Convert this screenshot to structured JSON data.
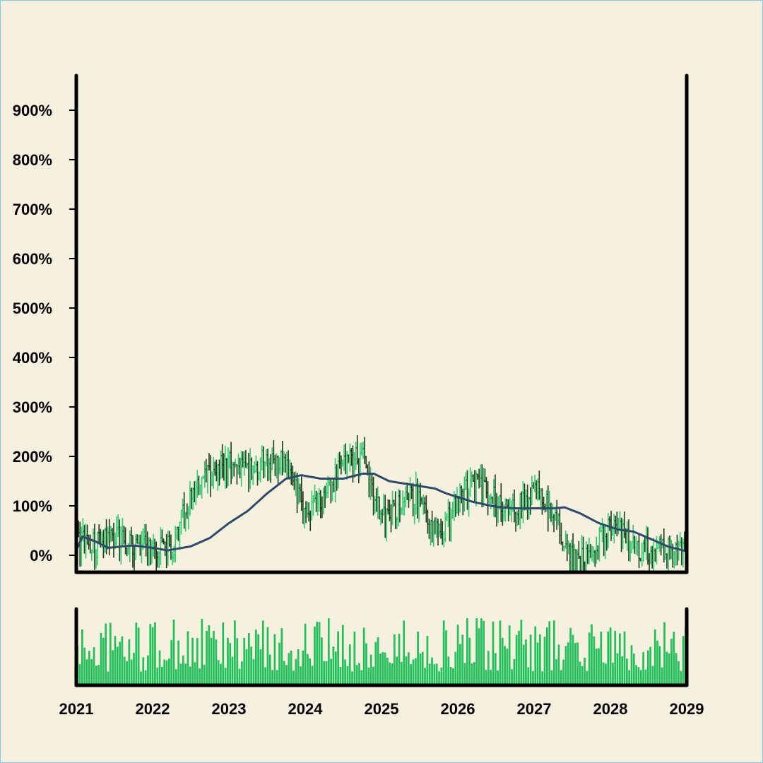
{
  "chart_data": {
    "type": "ohlc",
    "title": "",
    "xlabel": "",
    "ylabel": "",
    "x_ticks": [
      "2021",
      "2022",
      "2023",
      "2024",
      "2025",
      "2026",
      "2027",
      "2028",
      "2029"
    ],
    "y_ticks": [
      "0%",
      "100%",
      "200%",
      "300%",
      "400%",
      "500%",
      "600%",
      "700%",
      "800%",
      "900%"
    ],
    "x_range": [
      2021.0,
      2029.0
    ],
    "ylim": [
      -30,
      960
    ],
    "colors": {
      "up": "#2ecc71",
      "down": "#1a3d1a",
      "moving_average": "#2c4a6b",
      "volume": "#22c05a",
      "axis": "#000000",
      "background": "#f6f0df"
    },
    "series": [
      {
        "type": "ohlc",
        "approx_close_path": [
          [
            2021.0,
            30
          ],
          [
            2021.25,
            20
          ],
          [
            2021.5,
            40
          ],
          [
            2021.75,
            20
          ],
          [
            2022.0,
            10
          ],
          [
            2022.25,
            15
          ],
          [
            2022.5,
            120
          ],
          [
            2022.75,
            160
          ],
          [
            2023.0,
            185
          ],
          [
            2023.25,
            170
          ],
          [
            2023.5,
            190
          ],
          [
            2023.75,
            180
          ],
          [
            2024.0,
            80
          ],
          [
            2024.25,
            110
          ],
          [
            2024.5,
            190
          ],
          [
            2024.75,
            200
          ],
          [
            2025.0,
            70
          ],
          [
            2025.25,
            100
          ],
          [
            2025.5,
            120
          ],
          [
            2025.75,
            30
          ],
          [
            2026.0,
            110
          ],
          [
            2026.25,
            150
          ],
          [
            2026.5,
            110
          ],
          [
            2026.75,
            90
          ],
          [
            2027.0,
            130
          ],
          [
            2027.25,
            90
          ],
          [
            2027.5,
            -10
          ],
          [
            2027.75,
            -5
          ],
          [
            2028.0,
            60
          ],
          [
            2028.25,
            30
          ],
          [
            2028.5,
            10
          ],
          [
            2028.75,
            10
          ],
          [
            2029.0,
            5
          ]
        ]
      },
      {
        "type": "line",
        "points": [
          [
            2021.0,
            10
          ],
          [
            2021.08,
            38
          ],
          [
            2021.25,
            28
          ],
          [
            2021.42,
            15
          ],
          [
            2021.6,
            18
          ],
          [
            2021.75,
            20
          ],
          [
            2022.0,
            15
          ],
          [
            2022.2,
            10
          ],
          [
            2022.5,
            18
          ],
          [
            2022.75,
            35
          ],
          [
            2023.0,
            65
          ],
          [
            2023.25,
            90
          ],
          [
            2023.5,
            125
          ],
          [
            2023.75,
            155
          ],
          [
            2023.95,
            162
          ],
          [
            2024.2,
            155
          ],
          [
            2024.5,
            155
          ],
          [
            2024.75,
            165
          ],
          [
            2024.9,
            165
          ],
          [
            2025.1,
            150
          ],
          [
            2025.5,
            140
          ],
          [
            2025.7,
            135
          ],
          [
            2025.85,
            125
          ],
          [
            2026.2,
            108
          ],
          [
            2026.5,
            98
          ],
          [
            2026.75,
            95
          ],
          [
            2027.0,
            95
          ],
          [
            2027.25,
            95
          ],
          [
            2027.4,
            97
          ],
          [
            2027.6,
            85
          ],
          [
            2027.85,
            65
          ],
          [
            2028.1,
            52
          ],
          [
            2028.3,
            48
          ],
          [
            2028.5,
            35
          ],
          [
            2028.75,
            18
          ],
          [
            2029.0,
            8
          ]
        ]
      },
      {
        "type": "volume",
        "seed": 97
      }
    ]
  }
}
